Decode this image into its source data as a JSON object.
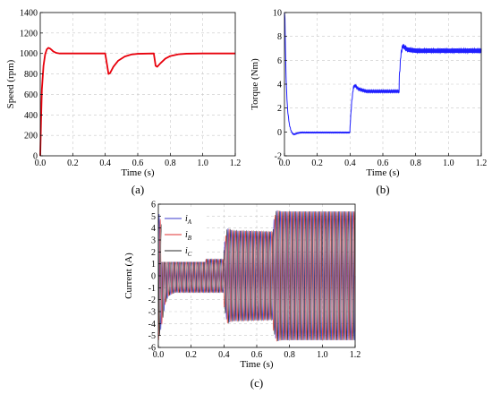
{
  "chart_data": [
    {
      "id": "a",
      "type": "line",
      "panel_label": "(a)",
      "xlabel": "Time (s)",
      "ylabel": "Speed (rpm)",
      "xlim": [
        0,
        1.2
      ],
      "ylim": [
        0,
        1400
      ],
      "xticks": [
        "0.0",
        "0.2",
        "0.4",
        "0.6",
        "0.8",
        "1.0",
        "1.2"
      ],
      "yticks": [
        "0",
        "200",
        "400",
        "600",
        "800",
        "1000",
        "1200",
        "1400"
      ],
      "grid": true,
      "color": "#e8000b",
      "series": [
        {
          "x": [
            0,
            0.005,
            0.01,
            0.02,
            0.03,
            0.04,
            0.05,
            0.06,
            0.07,
            0.08,
            0.1,
            0.12,
            0.15,
            0.2,
            0.3,
            0.399,
            0.4,
            0.41,
            0.42,
            0.43,
            0.45,
            0.48,
            0.52,
            0.56,
            0.6,
            0.699,
            0.7,
            0.71,
            0.72,
            0.74,
            0.77,
            0.8,
            0.85,
            0.9,
            1.0,
            1.2
          ],
          "y": [
            0,
            350,
            650,
            880,
            990,
            1040,
            1055,
            1048,
            1035,
            1020,
            1005,
            1000,
            1000,
            1000,
            1000,
            1000,
            995,
            900,
            800,
            810,
            870,
            930,
            970,
            990,
            997,
            1000,
            985,
            880,
            870,
            905,
            950,
            975,
            992,
            998,
            1000,
            1000
          ]
        }
      ]
    },
    {
      "id": "b",
      "type": "line",
      "panel_label": "(b)",
      "xlabel": "Time (s)",
      "ylabel": "Torque (Nm)",
      "xlim": [
        0,
        1.2
      ],
      "ylim": [
        -2,
        10
      ],
      "xticks": [
        "0.0",
        "0.2",
        "0.4",
        "0.6",
        "0.8",
        "1.0",
        "1.2"
      ],
      "yticks": [
        "-2",
        "0",
        "2",
        "4",
        "6",
        "8",
        "10"
      ],
      "grid": true,
      "color": "#1f1fff",
      "series": [
        {
          "x": [
            0,
            0.003,
            0.006,
            0.01,
            0.015,
            0.02,
            0.03,
            0.04,
            0.05,
            0.06,
            0.07,
            0.08,
            0.1,
            0.15,
            0.2,
            0.3,
            0.399,
            0.4,
            0.41,
            0.42,
            0.43,
            0.45,
            0.5,
            0.6,
            0.699,
            0.7,
            0.71,
            0.72,
            0.73,
            0.75,
            0.8,
            0.9,
            1.0,
            1.2
          ],
          "y": [
            10,
            9.5,
            7,
            4.5,
            2.8,
            1.7,
            0.6,
            0.1,
            -0.15,
            -0.2,
            -0.15,
            -0.1,
            -0.05,
            -0.05,
            -0.05,
            -0.05,
            -0.05,
            0.5,
            2.5,
            3.7,
            3.9,
            3.6,
            3.4,
            3.4,
            3.4,
            4.5,
            6.5,
            7.2,
            7.1,
            6.9,
            6.8,
            6.8,
            6.8,
            6.8
          ]
        }
      ]
    },
    {
      "id": "c",
      "type": "line",
      "panel_label": "(c)",
      "xlabel": "Time (s)",
      "ylabel": "Current (A)",
      "xlim": [
        0,
        1.2
      ],
      "ylim": [
        -6,
        6
      ],
      "xticks": [
        "0.0",
        "0.2",
        "0.4",
        "0.6",
        "0.8",
        "1.0",
        "1.2"
      ],
      "yticks": [
        "-6",
        "-5",
        "-4",
        "-3",
        "-2",
        "-1",
        "0",
        "1",
        "2",
        "3",
        "4",
        "5",
        "6"
      ],
      "grid": true,
      "series": [
        {
          "name": "i",
          "sub": "A",
          "color": "#3a3acc"
        },
        {
          "name": "i",
          "sub": "B",
          "color": "#e03030"
        },
        {
          "name": "i",
          "sub": "C",
          "color": "#2a2a2a"
        }
      ],
      "amplitude_envelope": {
        "t": [
          0,
          0.02,
          0.04,
          0.06,
          0.1,
          0.399,
          0.4,
          0.42,
          0.45,
          0.699,
          0.7,
          0.72,
          0.75,
          1.2
        ],
        "amp": [
          5.5,
          4.2,
          2.5,
          1.7,
          1.4,
          1.4,
          2.5,
          4.0,
          3.8,
          3.7,
          4.5,
          5.5,
          5.4,
          5.4
        ]
      },
      "legend_position": "top-left"
    }
  ]
}
